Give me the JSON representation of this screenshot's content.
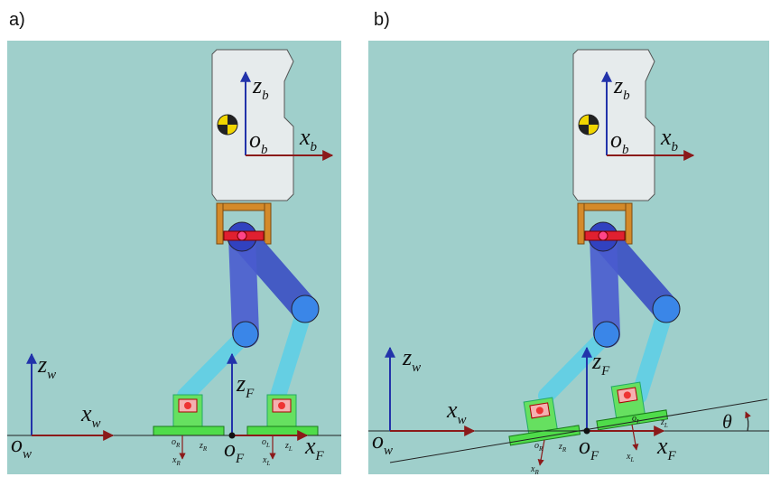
{
  "panels": [
    {
      "tag": "a)",
      "labels": [
        {
          "base": "z",
          "sub": "b"
        },
        {
          "base": "o",
          "sub": "b"
        },
        {
          "base": "x",
          "sub": "b"
        },
        {
          "base": "z",
          "sub": "w"
        },
        {
          "base": "x",
          "sub": "w"
        },
        {
          "base": "o",
          "sub": "w"
        },
        {
          "base": "z",
          "sub": "F"
        },
        {
          "base": "o",
          "sub": "F"
        },
        {
          "base": "x",
          "sub": "F"
        },
        {
          "base": "o",
          "sub": "R"
        },
        {
          "base": "x",
          "sub": "R"
        },
        {
          "base": "z",
          "sub": "R"
        },
        {
          "base": "o",
          "sub": "L"
        },
        {
          "base": "x",
          "sub": "L"
        },
        {
          "base": "z",
          "sub": "L"
        }
      ]
    },
    {
      "tag": "b)",
      "labels": [
        {
          "base": "z",
          "sub": "b"
        },
        {
          "base": "o",
          "sub": "b"
        },
        {
          "base": "x",
          "sub": "b"
        },
        {
          "base": "z",
          "sub": "w"
        },
        {
          "base": "x",
          "sub": "w"
        },
        {
          "base": "o",
          "sub": "w"
        },
        {
          "base": "z",
          "sub": "F"
        },
        {
          "base": "o",
          "sub": "F"
        },
        {
          "base": "x",
          "sub": "F"
        },
        {
          "base": "o",
          "sub": "R"
        },
        {
          "base": "x",
          "sub": "R"
        },
        {
          "base": "z",
          "sub": "R"
        },
        {
          "base": "o",
          "sub": "L"
        },
        {
          "base": "x",
          "sub": "L"
        },
        {
          "base": "z",
          "sub": "L"
        },
        {
          "base": "θ"
        }
      ]
    }
  ]
}
